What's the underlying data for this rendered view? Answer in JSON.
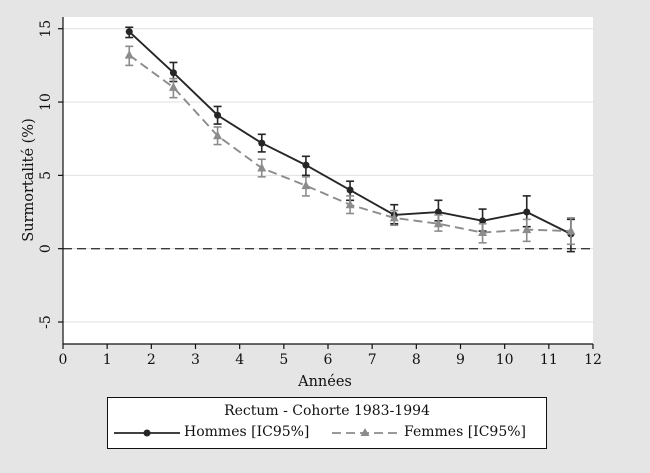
{
  "chart_data": {
    "type": "line",
    "title": "Rectum - Cohorte 1983-1994",
    "xlabel": "Années",
    "ylabel": "Surmortalité (%)",
    "xlim": [
      0,
      12
    ],
    "ylim": [
      -6.5,
      15.8
    ],
    "x_ticks": [
      "0",
      "1",
      "2",
      "3",
      "4",
      "5",
      "6",
      "7",
      "8",
      "9",
      "10",
      "11",
      "12"
    ],
    "y_ticks": [
      "-5",
      "0",
      "5",
      "10",
      "15"
    ],
    "grid": true,
    "reference_line_y": 0,
    "legend_position": "bottom",
    "x": [
      1.5,
      2.5,
      3.5,
      4.5,
      5.5,
      6.5,
      7.5,
      8.5,
      9.5,
      10.5,
      11.5
    ],
    "series": [
      {
        "name": "Hommes [IC95%]",
        "color": "#262626",
        "marker": "circle",
        "line_style": "solid",
        "values": [
          14.8,
          12.0,
          9.1,
          7.2,
          5.7,
          4.0,
          2.3,
          2.5,
          1.9,
          2.5,
          1.0
        ],
        "ci_low": [
          14.4,
          11.4,
          8.5,
          6.6,
          5.0,
          3.3,
          1.7,
          1.9,
          1.2,
          1.5,
          -0.2
        ],
        "ci_high": [
          15.1,
          12.7,
          9.7,
          7.8,
          6.3,
          4.6,
          3.0,
          3.3,
          2.7,
          3.6,
          2.0
        ]
      },
      {
        "name": "Femmes [IC95%]",
        "color": "#8c8c8c",
        "marker": "triangle",
        "line_style": "dashed",
        "values": [
          13.2,
          11.0,
          7.7,
          5.5,
          4.3,
          3.0,
          2.1,
          1.7,
          1.1,
          1.3,
          1.2
        ],
        "ci_low": [
          12.5,
          10.3,
          7.1,
          4.9,
          3.6,
          2.4,
          1.6,
          1.2,
          0.4,
          0.5,
          0.3
        ],
        "ci_high": [
          13.8,
          11.6,
          8.3,
          6.1,
          4.9,
          3.6,
          2.6,
          2.3,
          1.7,
          2.0,
          2.1
        ]
      }
    ]
  }
}
